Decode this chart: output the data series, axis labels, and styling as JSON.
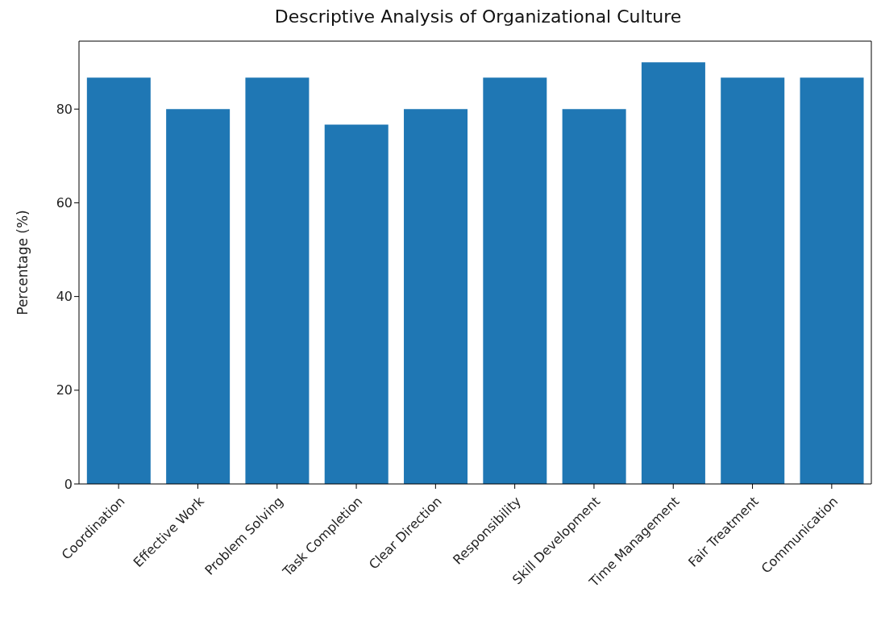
{
  "chart_data": {
    "type": "bar",
    "title": "Descriptive Analysis of Organizational Culture",
    "ylabel": "Percentage (%)",
    "categories": [
      "Coordination",
      "Effective Work",
      "Problem Solving",
      "Task Completion",
      "Clear Direction",
      "Responsibility",
      "Skill Development",
      "Time Management",
      "Fair Treatment",
      "Communication"
    ],
    "values": [
      86.7,
      80,
      86.7,
      76.7,
      80,
      86.7,
      80,
      90,
      86.7,
      86.7
    ],
    "color": "#1f77b4",
    "ylim": [
      0,
      94.5
    ],
    "yticks": [
      0,
      20,
      40,
      60,
      80
    ],
    "grid": false,
    "legend": false
  }
}
